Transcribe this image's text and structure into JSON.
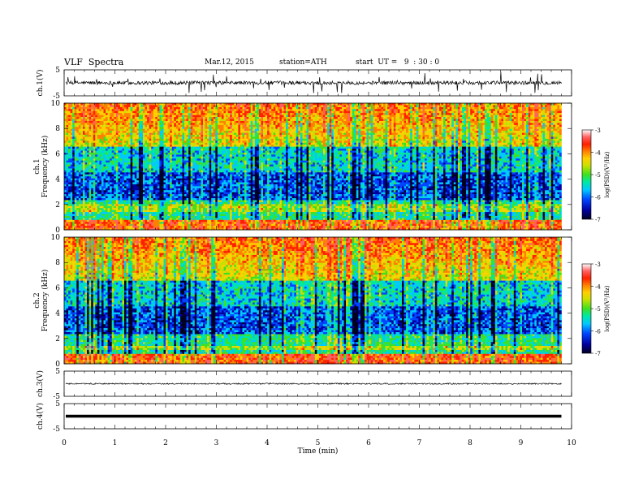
{
  "header": {
    "title": "VLF  Spectra",
    "date": "Mar.12, 2015",
    "station": "station=ATH",
    "start": "start  UT =   9  : 30 : 0"
  },
  "colors": {
    "spectrogram_scale": [
      "#000020",
      "#0000a0",
      "#0044ff",
      "#00c8ff",
      "#00e8a0",
      "#40e020",
      "#c8e000",
      "#ffd000",
      "#ff8000",
      "#ff2000",
      "#ff6060",
      "#ffffff"
    ],
    "trace": "#000000",
    "frame": "#000000"
  },
  "chart_data": [
    {
      "type": "line",
      "panel": "ch1-waveform",
      "ylabel": "ch.1(V)",
      "ylim": [
        -5,
        5
      ],
      "yticks": [
        "5",
        "-5"
      ],
      "description_values": {
        "baseline": 0,
        "spike_max": 4.5,
        "spike_min": -4.5
      }
    },
    {
      "type": "heatmap",
      "panel": "ch1-spectrogram",
      "ylabel_top": "ch.1",
      "ylabel": "Frequency  (kHz)",
      "ylim": [
        0,
        10
      ],
      "yticks": [
        "0",
        "2",
        "4",
        "6",
        "8",
        "10"
      ],
      "colorbar": {
        "label": "log(PSD)(V²/Hz)",
        "range": [
          -7,
          -3
        ],
        "ticks": [
          "-3",
          "-4",
          "-5",
          "-6",
          "-7"
        ]
      }
    },
    {
      "type": "heatmap",
      "panel": "ch2-spectrogram",
      "ylabel_top": "ch.2",
      "ylabel": "Frequency  (kHz)",
      "ylim": [
        0,
        10
      ],
      "yticks": [
        "0",
        "2",
        "4",
        "6",
        "8",
        "10"
      ],
      "colorbar": {
        "label": "log(PSD)(V²/Hz)",
        "range": [
          -7,
          -3
        ],
        "ticks": [
          "-3",
          "-4",
          "-5",
          "-6",
          "-7"
        ]
      }
    },
    {
      "type": "line",
      "panel": "ch3-waveform",
      "ylabel": "ch.3(V)",
      "ylim": [
        -5,
        5
      ],
      "yticks": [
        "5",
        "-5"
      ],
      "description_values": {
        "baseline": 0
      }
    },
    {
      "type": "line",
      "panel": "ch4-waveform",
      "ylabel": "ch.4(V)",
      "ylim": [
        -5,
        5
      ],
      "yticks": [
        "5",
        "-5"
      ],
      "description_values": {
        "baseline": 0
      }
    }
  ],
  "xaxis": {
    "label": "Time  (min)",
    "xlim": [
      0,
      10
    ],
    "ticks": [
      "0",
      "1",
      "2",
      "3",
      "4",
      "5",
      "6",
      "7",
      "8",
      "9",
      "10"
    ],
    "data_end_min": 9.8
  }
}
